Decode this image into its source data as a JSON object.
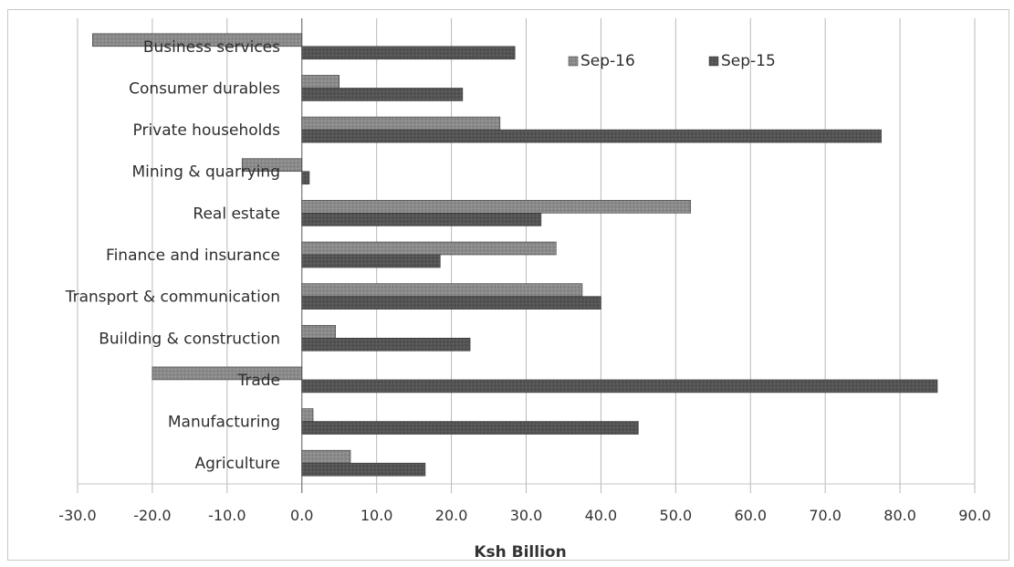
{
  "chart_data": {
    "type": "bar",
    "orientation": "horizontal",
    "title": "",
    "xlabel": "Ksh Billion",
    "ylabel": "",
    "xlim": [
      -30,
      90
    ],
    "xticks": [
      -30,
      -20,
      -10,
      0,
      10,
      20,
      30,
      40,
      50,
      60,
      70,
      80,
      90
    ],
    "xtick_labels": [
      "-30.0",
      "-20.0",
      "-10.0",
      "0.0",
      "10.0",
      "20.0",
      "30.0",
      "40.0",
      "50.0",
      "60.0",
      "70.0",
      "80.0",
      "90.0"
    ],
    "grid": "vertical",
    "legend_position": "top-right",
    "categories": [
      "Business services",
      "Consumer durables",
      "Private households",
      "Mining & quarrying",
      "Real estate",
      "Finance and insurance",
      "Transport & communication",
      "Building & construction",
      "Trade",
      "Manufacturing",
      "Agriculture"
    ],
    "series": [
      {
        "name": "Sep-16",
        "color": "#8a8a8a",
        "values": [
          -28.0,
          5.0,
          26.5,
          -8.0,
          52.0,
          34.0,
          37.5,
          4.5,
          -20.0,
          1.5,
          6.5
        ]
      },
      {
        "name": "Sep-15",
        "color": "#545454",
        "values": [
          28.5,
          21.5,
          77.5,
          1.0,
          32.0,
          18.5,
          40.0,
          22.5,
          85.0,
          45.0,
          16.5
        ]
      }
    ]
  }
}
